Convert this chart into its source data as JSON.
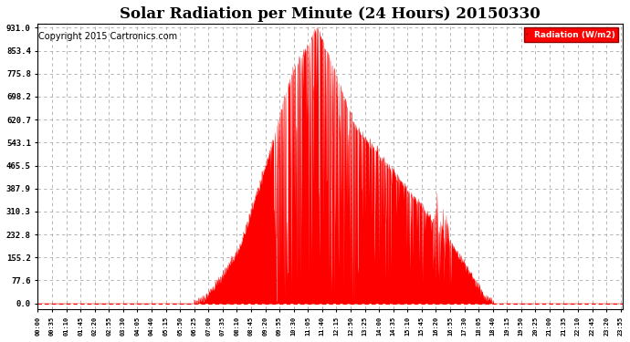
{
  "title": "Solar Radiation per Minute (24 Hours) 20150330",
  "copyright": "Copyright 2015 Cartronics.com",
  "legend_label": "Radiation (W/m2)",
  "yticks": [
    0.0,
    77.6,
    155.2,
    232.8,
    310.3,
    387.9,
    465.5,
    543.1,
    620.7,
    698.2,
    775.8,
    853.4,
    931.0
  ],
  "ymax": 931.0,
  "ymin": 0.0,
  "fill_color": "#ff0000",
  "line_color": "#ff0000",
  "background_color": "#ffffff",
  "grid_color": "#aaaaaa",
  "dashed_zero_color": "#ff0000",
  "title_fontsize": 12,
  "copyright_fontsize": 7,
  "total_minutes": 1440,
  "xtick_interval": 35,
  "sunrise_min": 385,
  "sunset_min": 1125,
  "peak_min": 690
}
